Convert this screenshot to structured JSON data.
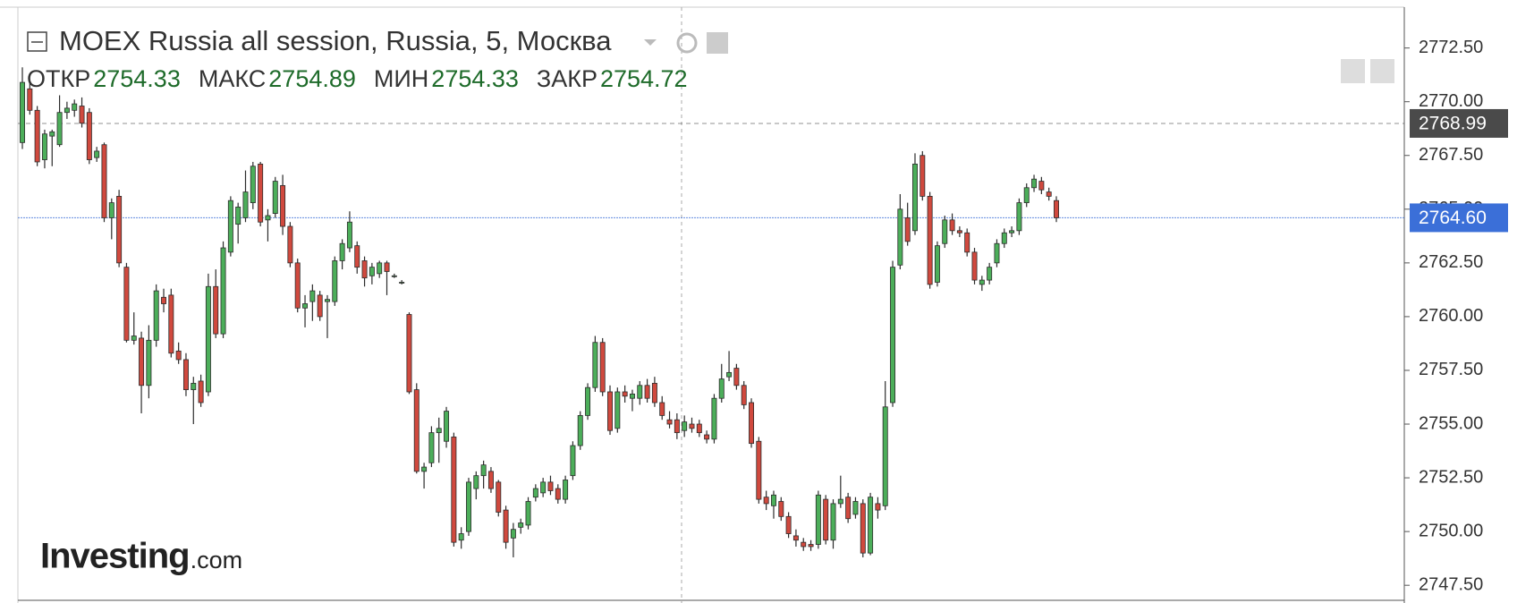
{
  "chart_data": {
    "type": "candlestick",
    "title": "MOEX Russia all session, Russia, 5, Москва",
    "legend": [
      {
        "label": "ОТКР",
        "value": 2754.33
      },
      {
        "label": "МАКС",
        "value": 2754.89
      },
      {
        "label": "МИН",
        "value": 2754.33
      },
      {
        "label": "ЗАКР",
        "value": 2754.72
      }
    ],
    "logo": {
      "brand": "Investing",
      "suffix": ".com"
    },
    "up_color": "#4cae5a",
    "down_color": "#d0493e",
    "ylim": [
      2746.8,
      2774.4
    ],
    "yticks": [
      {
        "value": 2747.5,
        "label": "2747.50"
      },
      {
        "value": 2750,
        "label": "2750.00"
      },
      {
        "value": 2752.5,
        "label": "2752.50"
      },
      {
        "value": 2755,
        "label": "2755.00"
      },
      {
        "value": 2757.5,
        "label": "2757.50"
      },
      {
        "value": 2760,
        "label": "2760.00"
      },
      {
        "value": 2762.5,
        "label": "2762.50"
      },
      {
        "value": 2765,
        "label": "2765.00"
      },
      {
        "value": 2767.5,
        "label": "2767.50"
      },
      {
        "value": 2770,
        "label": "2770.00"
      },
      {
        "value": 2772.5,
        "label": "2772.50"
      }
    ],
    "price_lines": [
      {
        "value": 2768.99,
        "color": "#4a4a4a"
      },
      {
        "value": {
          "value": 2764.6,
          "label": "2764.60"
        },
        "color": "#3b6fd8"
      }
    ],
    "ohlc": [
      [
        2768.1,
        2771.6,
        2767.8,
        2770.9
      ],
      [
        2770.6,
        2770.9,
        2769.4,
        2769.6
      ],
      [
        2769.6,
        2769.8,
        2767.0,
        2767.2
      ],
      [
        2767.3,
        2768.7,
        2766.9,
        2768.5
      ],
      [
        2768.4,
        2768.7,
        2767.0,
        2768.6
      ],
      [
        2768.0,
        2770.3,
        2767.9,
        2769.5
      ],
      [
        2769.5,
        2770.0,
        2769.2,
        2769.7
      ],
      [
        2769.6,
        2770.1,
        2769.3,
        2769.9
      ],
      [
        2769.8,
        2770.2,
        2768.8,
        2769.0
      ],
      [
        2769.5,
        2769.7,
        2767.1,
        2767.3
      ],
      [
        2767.4,
        2767.9,
        2767.2,
        2767.7
      ],
      [
        2768.0,
        2768.1,
        2764.4,
        2764.6
      ],
      [
        2764.6,
        2765.5,
        2763.6,
        2765.3
      ],
      [
        2765.6,
        2765.9,
        2762.3,
        2762.5
      ],
      [
        2762.3,
        2762.5,
        2758.8,
        2758.9
      ],
      [
        2758.9,
        2760.2,
        2758.7,
        2759.1
      ],
      [
        2759.0,
        2759.3,
        2755.5,
        2756.8
      ],
      [
        2756.8,
        2759.6,
        2756.2,
        2758.9
      ],
      [
        2758.9,
        2761.5,
        2758.6,
        2761.2
      ],
      [
        2760.9,
        2761.3,
        2760.2,
        2760.6
      ],
      [
        2761.0,
        2761.3,
        2758.1,
        2758.3
      ],
      [
        2758.4,
        2758.8,
        2757.8,
        2758.0
      ],
      [
        2758.0,
        2758.3,
        2756.3,
        2756.6
      ],
      [
        2756.6,
        2757.2,
        2755.0,
        2756.9
      ],
      [
        2757.0,
        2757.3,
        2755.8,
        2756.0
      ],
      [
        2756.5,
        2762.0,
        2756.3,
        2761.4
      ],
      [
        2761.4,
        2762.2,
        2759.0,
        2759.2
      ],
      [
        2759.2,
        2763.5,
        2759.0,
        2763.2
      ],
      [
        2763.0,
        2765.6,
        2762.8,
        2765.4
      ],
      [
        2764.3,
        2765.3,
        2763.4,
        2765.1
      ],
      [
        2764.6,
        2766.8,
        2764.4,
        2765.8
      ],
      [
        2765.3,
        2767.2,
        2765.0,
        2767.0
      ],
      [
        2767.1,
        2767.2,
        2764.2,
        2764.4
      ],
      [
        2764.5,
        2765.0,
        2763.5,
        2764.7
      ],
      [
        2764.8,
        2766.5,
        2764.6,
        2766.3
      ],
      [
        2766.1,
        2766.6,
        2763.8,
        2764.2
      ],
      [
        2764.2,
        2764.4,
        2762.3,
        2762.5
      ],
      [
        2762.5,
        2762.7,
        2760.2,
        2760.4
      ],
      [
        2760.4,
        2761.0,
        2759.5,
        2760.6
      ],
      [
        2760.7,
        2761.5,
        2759.8,
        2761.2
      ],
      [
        2761.0,
        2761.2,
        2759.8,
        2760.0
      ],
      [
        2760.7,
        2761.0,
        2759.0,
        2760.8
      ],
      [
        2760.7,
        2762.8,
        2760.5,
        2762.6
      ],
      [
        2762.6,
        2763.6,
        2762.2,
        2763.4
      ],
      [
        2763.2,
        2764.9,
        2763.0,
        2764.4
      ],
      [
        2763.3,
        2763.5,
        2762.0,
        2762.3
      ],
      [
        2762.6,
        2762.8,
        2761.4,
        2761.8
      ],
      [
        2761.9,
        2762.5,
        2761.5,
        2762.3
      ],
      [
        2762.0,
        2762.6,
        2761.8,
        2762.5
      ],
      [
        2762.5,
        2762.6,
        2761.0,
        2762.1
      ],
      [
        2761.9,
        2762.0,
        2761.8,
        2761.9
      ],
      [
        2761.6,
        2761.7,
        2761.5,
        2761.6
      ],
      [
        2760.1,
        2760.2,
        2756.4,
        2756.5
      ],
      [
        2756.6,
        2756.9,
        2752.7,
        2752.8
      ],
      [
        2752.8,
        2753.2,
        2752.0,
        2753.0
      ],
      [
        2753.2,
        2754.9,
        2753.0,
        2754.6
      ],
      [
        2754.6,
        2755.3,
        2753.2,
        2754.8
      ],
      [
        2754.2,
        2755.8,
        2753.9,
        2755.6
      ],
      [
        2754.4,
        2754.6,
        2749.3,
        2749.5
      ],
      [
        2749.6,
        2750.2,
        2749.2,
        2749.9
      ],
      [
        2750.0,
        2752.5,
        2749.8,
        2752.3
      ],
      [
        2752.0,
        2752.8,
        2751.5,
        2752.6
      ],
      [
        2752.6,
        2753.3,
        2752.0,
        2753.1
      ],
      [
        2752.8,
        2753.0,
        2751.8,
        2752.0
      ],
      [
        2752.3,
        2752.4,
        2750.7,
        2750.9
      ],
      [
        2751.0,
        2751.2,
        2749.2,
        2749.5
      ],
      [
        2749.7,
        2750.4,
        2748.8,
        2750.1
      ],
      [
        2750.2,
        2750.6,
        2749.9,
        2750.4
      ],
      [
        2750.3,
        2751.6,
        2750.1,
        2751.4
      ],
      [
        2751.6,
        2752.2,
        2751.4,
        2752.0
      ],
      [
        2751.8,
        2752.5,
        2751.6,
        2752.3
      ],
      [
        2752.3,
        2752.6,
        2751.7,
        2751.9
      ],
      [
        2752.0,
        2752.2,
        2751.3,
        2751.5
      ],
      [
        2751.5,
        2752.6,
        2751.3,
        2752.4
      ],
      [
        2752.6,
        2754.2,
        2752.4,
        2754.0
      ],
      [
        2754.0,
        2755.6,
        2753.8,
        2755.4
      ],
      [
        2755.4,
        2756.9,
        2755.2,
        2756.7
      ],
      [
        2756.7,
        2759.1,
        2756.5,
        2758.8
      ],
      [
        2758.8,
        2759.0,
        2756.3,
        2756.5
      ],
      [
        2756.5,
        2756.8,
        2754.5,
        2754.7
      ],
      [
        2754.8,
        2756.7,
        2754.6,
        2756.5
      ],
      [
        2756.5,
        2756.8,
        2756.0,
        2756.3
      ],
      [
        2756.2,
        2756.6,
        2755.6,
        2756.4
      ],
      [
        2756.2,
        2757.0,
        2755.9,
        2756.8
      ],
      [
        2756.8,
        2757.1,
        2756.0,
        2756.2
      ],
      [
        2756.9,
        2757.2,
        2755.8,
        2756.0
      ],
      [
        2756.0,
        2756.3,
        2755.2,
        2755.4
      ],
      [
        2755.2,
        2755.6,
        2754.8,
        2755.0
      ],
      [
        2755.2,
        2755.5,
        2754.3,
        2754.6
      ],
      [
        2754.7,
        2755.4,
        2754.4,
        2755.1
      ],
      [
        2755.0,
        2755.3,
        2754.6,
        2754.8
      ],
      [
        2755.0,
        2755.2,
        2754.4,
        2754.6
      ],
      [
        2754.5,
        2754.7,
        2754.1,
        2754.3
      ],
      [
        2754.3,
        2756.4,
        2754.1,
        2756.2
      ],
      [
        2756.2,
        2757.8,
        2756.0,
        2757.1
      ],
      [
        2757.2,
        2758.4,
        2757.0,
        2757.4
      ],
      [
        2757.6,
        2757.8,
        2756.6,
        2756.8
      ],
      [
        2756.8,
        2757.0,
        2755.7,
        2755.9
      ],
      [
        2756.0,
        2756.2,
        2753.9,
        2754.1
      ],
      [
        2754.2,
        2754.4,
        2751.3,
        2751.5
      ],
      [
        2751.6,
        2751.9,
        2751.0,
        2751.3
      ],
      [
        2751.2,
        2751.9,
        2750.6,
        2751.7
      ],
      [
        2751.4,
        2751.6,
        2750.5,
        2750.7
      ],
      [
        2750.7,
        2750.9,
        2749.7,
        2749.9
      ],
      [
        2749.8,
        2750.1,
        2749.3,
        2749.6
      ],
      [
        2749.5,
        2749.7,
        2749.1,
        2749.3
      ],
      [
        2749.4,
        2749.6,
        2749.1,
        2749.3
      ],
      [
        2749.4,
        2751.9,
        2749.2,
        2751.7
      ],
      [
        2751.5,
        2751.7,
        2749.4,
        2749.6
      ],
      [
        2749.6,
        2751.5,
        2749.2,
        2751.3
      ],
      [
        2751.3,
        2752.6,
        2751.1,
        2751.5
      ],
      [
        2751.6,
        2751.8,
        2750.4,
        2750.6
      ],
      [
        2750.8,
        2751.6,
        2750.6,
        2751.4
      ],
      [
        2751.3,
        2751.5,
        2748.8,
        2749.0
      ],
      [
        2749.0,
        2751.8,
        2748.9,
        2751.6
      ],
      [
        2751.3,
        2751.6,
        2750.6,
        2751.0
      ],
      [
        2751.2,
        2757.0,
        2751.0,
        2755.8
      ],
      [
        2756.0,
        2762.6,
        2755.8,
        2762.3
      ],
      [
        2762.4,
        2765.7,
        2762.2,
        2765.0
      ],
      [
        2764.6,
        2765.3,
        2763.3,
        2763.5
      ],
      [
        2764.0,
        2767.6,
        2763.8,
        2767.1
      ],
      [
        2767.5,
        2767.7,
        2765.4,
        2765.6
      ],
      [
        2765.6,
        2765.8,
        2761.3,
        2761.5
      ],
      [
        2761.6,
        2763.5,
        2761.4,
        2763.3
      ],
      [
        2763.4,
        2764.7,
        2763.2,
        2764.5
      ],
      [
        2764.5,
        2764.8,
        2763.8,
        2764.0
      ],
      [
        2764.0,
        2764.2,
        2763.7,
        2763.9
      ],
      [
        2763.9,
        2764.1,
        2762.8,
        2763.0
      ],
      [
        2763.0,
        2763.2,
        2761.5,
        2761.7
      ],
      [
        2761.5,
        2761.9,
        2761.2,
        2761.7
      ],
      [
        2761.7,
        2762.5,
        2761.5,
        2762.3
      ],
      [
        2762.5,
        2763.6,
        2762.3,
        2763.4
      ],
      [
        2763.4,
        2764.1,
        2763.2,
        2763.9
      ],
      [
        2763.9,
        2764.2,
        2763.7,
        2764.0
      ],
      [
        2764.0,
        2765.5,
        2763.8,
        2765.3
      ],
      [
        2765.3,
        2766.2,
        2765.1,
        2766.0
      ],
      [
        2766.0,
        2766.6,
        2765.8,
        2766.4
      ],
      [
        2766.3,
        2766.5,
        2765.7,
        2765.9
      ],
      [
        2765.8,
        2766.0,
        2765.4,
        2765.6
      ],
      [
        2765.4,
        2765.6,
        2764.4,
        2764.6
      ]
    ]
  }
}
